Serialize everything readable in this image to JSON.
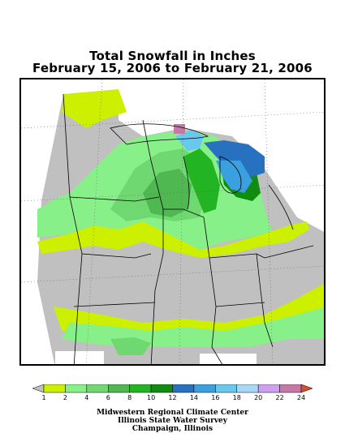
{
  "title": {
    "line1": "Total Snowfall in Inches",
    "line2": "February 15, 2006 to February 21, 2006"
  },
  "legend": {
    "labels": [
      "1",
      "2",
      "4",
      "6",
      "8",
      "10",
      "12",
      "14",
      "16",
      "18",
      "20",
      "22",
      "24"
    ],
    "colors": [
      "#c0c0c0",
      "#ccf000",
      "#88f088",
      "#70d870",
      "#50b850",
      "#22b422",
      "#108c10",
      "#2870c0",
      "#3aa0e0",
      "#68c8f0",
      "#a8d8f8",
      "#d0a0f0",
      "#c878a8",
      "#d05030"
    ]
  },
  "credits": {
    "line1": "Midwestern Regional Climate Center",
    "line2": "Illinois State Water Survey",
    "line3": "Champaign, Illinois"
  }
}
